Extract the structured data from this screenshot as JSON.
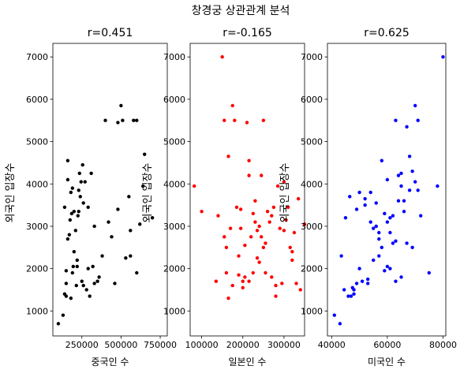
{
  "figure": {
    "suptitle": "창경궁 상관관계 분석"
  },
  "chart_data": [
    {
      "type": "scatter",
      "title": "r=0.451",
      "xlabel": "중국인 수",
      "ylabel": "외국인 입장수",
      "color": "#000000",
      "xlim": [
        65000,
        795000
      ],
      "ylim": [
        410,
        7320
      ],
      "xticks": [
        250000,
        500000,
        750000
      ],
      "xtick_labels": [
        "250000",
        "500000",
        "750000"
      ],
      "yticks": [
        1000,
        2000,
        3000,
        4000,
        5000,
        6000,
        7000
      ],
      "ytick_labels": [
        "1000",
        "2000",
        "3000",
        "4000",
        "5000",
        "6000",
        "7000"
      ],
      "x": [
        100000,
        130000,
        140000,
        150000,
        150000,
        160000,
        160000,
        170000,
        175000,
        180000,
        185000,
        190000,
        195000,
        200000,
        210000,
        215000,
        220000,
        225000,
        230000,
        235000,
        240000,
        245000,
        250000,
        255000,
        260000,
        270000,
        280000,
        290000,
        300000,
        310000,
        320000,
        330000,
        350000,
        360000,
        380000,
        400000,
        420000,
        440000,
        460000,
        480000,
        500000,
        510000,
        530000,
        560000,
        580000,
        600000,
        620000,
        650000,
        700000,
        140000,
        180000,
        220000,
        260000,
        150000,
        190000,
        330000,
        480000,
        550000,
        600000,
        640000,
        560000,
        160000,
        200000,
        230000,
        290000
      ],
      "y": [
        700,
        900,
        3450,
        1950,
        1650,
        4550,
        4100,
        2800,
        3150,
        3800,
        3300,
        3900,
        2050,
        2400,
        2900,
        1600,
        2200,
        3250,
        3350,
        4250,
        3700,
        4050,
        1700,
        4450,
        3550,
        4050,
        1500,
        2000,
        1350,
        4250,
        2050,
        3000,
        1700,
        1800,
        2300,
        5500,
        3100,
        2750,
        1650,
        5450,
        5850,
        5500,
        2250,
        2300,
        5500,
        5500,
        3050,
        4700,
        3200,
        1400,
        1300,
        2050,
        1600,
        1350,
        1900,
        1650,
        3400,
        3700,
        1900,
        3950,
        2900,
        2700,
        3350,
        3850,
        3450
      ]
    },
    {
      "type": "scatter",
      "title": "r=-0.165",
      "xlabel": "일본인 수",
      "ylabel": "외국인 입장수",
      "color": "#ff0000",
      "xlim": [
        72000,
        350000
      ],
      "ylim": [
        410,
        7320
      ],
      "xticks": [
        100000,
        200000,
        300000
      ],
      "xtick_labels": [
        "100000",
        "200000",
        "300000"
      ],
      "yticks": [
        1000,
        2000,
        3000,
        4000,
        5000,
        6000,
        7000
      ],
      "ytick_labels": [
        "1000",
        "2000",
        "3000",
        "4000",
        "5000",
        "6000",
        "7000"
      ],
      "x": [
        82000,
        100000,
        135000,
        140000,
        150000,
        155000,
        160000,
        165000,
        170000,
        175000,
        180000,
        185000,
        190000,
        195000,
        200000,
        205000,
        210000,
        215000,
        220000,
        225000,
        230000,
        235000,
        240000,
        245000,
        250000,
        255000,
        260000,
        270000,
        280000,
        290000,
        300000,
        310000,
        320000,
        330000,
        340000,
        350000,
        155000,
        165000,
        175000,
        190000,
        205000,
        215000,
        225000,
        235000,
        245000,
        255000,
        265000,
        275000,
        285000,
        295000,
        305000,
        315000,
        325000,
        335000,
        160000,
        200000,
        240000,
        280000,
        320000,
        195000,
        215000,
        230000,
        250000,
        270000,
        300000
      ],
      "y": [
        3950,
        3350,
        1700,
        3250,
        7000,
        5500,
        1900,
        4650,
        2950,
        5850,
        5500,
        3450,
        2300,
        2950,
        1550,
        1800,
        5450,
        4550,
        2750,
        3300,
        3600,
        2250,
        2150,
        4200,
        5500,
        2600,
        3350,
        3250,
        1350,
        2950,
        4050,
        3450,
        2200,
        1650,
        1500,
        3050,
        2750,
        1300,
        1600,
        1850,
        2550,
        1700,
        1900,
        2900,
        2750,
        1900,
        3100,
        3450,
        3950,
        1650,
        3150,
        2500,
        2850,
        3650,
        2500,
        1700,
        3000,
        1600,
        2400,
        3400,
        4200,
        3100,
        2500,
        1800,
        2900
      ]
    },
    {
      "type": "scatter",
      "title": "r=0.625",
      "xlabel": "미국인 수",
      "ylabel": "외국인 입장수",
      "color": "#0000ff",
      "xlim": [
        38500,
        81000
      ],
      "ylim": [
        410,
        7320
      ],
      "xticks": [
        40000,
        60000,
        80000
      ],
      "xtick_labels": [
        "40000",
        "60000",
        "80000"
      ],
      "yticks": [
        1000,
        2000,
        3000,
        4000,
        5000,
        6000,
        7000
      ],
      "ytick_labels": [
        "1000",
        "2000",
        "3000",
        "4000",
        "5000",
        "6000",
        "7000"
      ],
      "x": [
        41000,
        43000,
        43500,
        44500,
        45000,
        46000,
        46500,
        47000,
        47500,
        48000,
        49000,
        50000,
        51000,
        52000,
        53000,
        54000,
        55000,
        56000,
        57000,
        58000,
        59000,
        60000,
        61000,
        62000,
        63000,
        64000,
        65000,
        66000,
        67000,
        68000,
        69000,
        70000,
        71000,
        72000,
        75000,
        78000,
        80000,
        48000,
        50000,
        53000,
        55000,
        57000,
        59000,
        61000,
        63000,
        65000,
        67000,
        49000,
        52000,
        56000,
        60000,
        64000,
        68000,
        58000,
        62000,
        66000,
        70000,
        54000,
        60000,
        63000,
        69000,
        71000,
        57000,
        61000,
        65000
      ],
      "y": [
        900,
        700,
        2300,
        1500,
        3200,
        1350,
        3700,
        1350,
        1550,
        1500,
        1650,
        3800,
        1700,
        3650,
        1750,
        3800,
        2950,
        3550,
        2700,
        4550,
        3300,
        4100,
        2850,
        3250,
        5500,
        4200,
        4250,
        3600,
        5350,
        3850,
        2500,
        5850,
        3850,
        3250,
        1900,
        3950,
        7000,
        1400,
        2000,
        1650,
        2200,
        2300,
        1950,
        2000,
        2650,
        3950,
        2600,
        3400,
        3500,
        3000,
        3100,
        3600,
        4650,
        2500,
        2600,
        3350,
        4050,
        3100,
        2050,
        1700,
        4300,
        5500,
        2850,
        3200,
        1800
      ]
    }
  ]
}
